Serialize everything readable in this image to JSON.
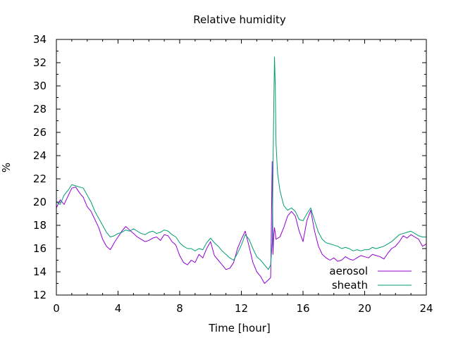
{
  "chart_data": {
    "type": "line",
    "title": "Relative humidity",
    "xlabel": "Time [hour]",
    "ylabel": "%",
    "xlim": [
      0,
      24
    ],
    "ylim": [
      12,
      34
    ],
    "xticks": [
      0,
      4,
      8,
      12,
      16,
      20,
      24
    ],
    "yticks": [
      12,
      14,
      16,
      18,
      20,
      22,
      24,
      26,
      28,
      30,
      32,
      34
    ],
    "grid": false,
    "legend_position": "bottom-right",
    "series": [
      {
        "name": "aerosol",
        "color": "#9400d3",
        "x": [
          0.0,
          0.25,
          0.5,
          0.75,
          1.0,
          1.25,
          1.5,
          1.75,
          2.0,
          2.25,
          2.5,
          2.75,
          3.0,
          3.25,
          3.5,
          3.75,
          4.0,
          4.25,
          4.5,
          4.75,
          5.0,
          5.25,
          5.5,
          5.75,
          6.0,
          6.25,
          6.5,
          6.75,
          7.0,
          7.25,
          7.5,
          7.75,
          8.0,
          8.25,
          8.5,
          8.75,
          9.0,
          9.25,
          9.5,
          9.75,
          10.0,
          10.25,
          10.5,
          10.75,
          11.0,
          11.25,
          11.5,
          11.75,
          12.0,
          12.25,
          12.5,
          12.75,
          13.0,
          13.25,
          13.5,
          13.75,
          13.9,
          13.95,
          14.0,
          14.05,
          14.1,
          14.15,
          14.25,
          14.5,
          14.75,
          15.0,
          15.25,
          15.5,
          15.75,
          16.0,
          16.25,
          16.5,
          16.75,
          17.0,
          17.25,
          17.5,
          17.75,
          18.0,
          18.25,
          18.5,
          18.75,
          19.0,
          19.25,
          19.5,
          19.75,
          20.0,
          20.25,
          20.5,
          20.75,
          21.0,
          21.25,
          21.5,
          21.75,
          22.0,
          22.25,
          22.5,
          22.75,
          23.0,
          23.25,
          23.5,
          23.75,
          24.0
        ],
        "y": [
          19.5,
          20.2,
          19.8,
          20.5,
          21.2,
          21.3,
          20.8,
          20.4,
          19.6,
          19.2,
          18.5,
          17.8,
          16.8,
          16.2,
          15.9,
          16.5,
          17.0,
          17.5,
          17.9,
          17.6,
          17.3,
          17.0,
          16.8,
          16.6,
          16.7,
          16.9,
          17.0,
          16.7,
          17.2,
          17.1,
          16.6,
          16.3,
          15.4,
          14.8,
          14.6,
          15.0,
          14.8,
          15.5,
          15.2,
          16.0,
          16.6,
          15.4,
          15.0,
          14.6,
          14.2,
          14.3,
          14.8,
          16.0,
          16.8,
          17.5,
          16.2,
          14.8,
          14.0,
          13.6,
          13.0,
          13.3,
          13.5,
          18.2,
          23.5,
          15.5,
          17.2,
          17.8,
          16.8,
          17.0,
          17.8,
          18.8,
          19.2,
          18.8,
          17.5,
          16.6,
          18.4,
          19.3,
          17.5,
          16.2,
          15.5,
          15.2,
          15.0,
          15.2,
          14.9,
          15.0,
          15.3,
          15.1,
          15.0,
          15.2,
          15.4,
          15.3,
          15.2,
          15.5,
          15.4,
          15.3,
          15.1,
          15.6,
          16.0,
          16.2,
          16.6,
          17.1,
          16.9,
          17.2,
          17.0,
          16.8,
          16.2,
          16.4
        ]
      },
      {
        "name": "sheath",
        "color": "#009e73",
        "x": [
          0.0,
          0.25,
          0.5,
          0.75,
          1.0,
          1.25,
          1.5,
          1.75,
          2.0,
          2.25,
          2.5,
          2.75,
          3.0,
          3.25,
          3.5,
          3.75,
          4.0,
          4.25,
          4.5,
          4.75,
          5.0,
          5.25,
          5.5,
          5.75,
          6.0,
          6.25,
          6.5,
          6.75,
          7.0,
          7.25,
          7.5,
          7.75,
          8.0,
          8.25,
          8.5,
          8.75,
          9.0,
          9.25,
          9.5,
          9.75,
          10.0,
          10.25,
          10.5,
          10.75,
          11.0,
          11.25,
          11.5,
          11.75,
          12.0,
          12.25,
          12.5,
          12.75,
          13.0,
          13.25,
          13.5,
          13.75,
          13.9,
          14.0,
          14.1,
          14.15,
          14.2,
          14.25,
          14.35,
          14.5,
          14.75,
          15.0,
          15.25,
          15.5,
          15.75,
          16.0,
          16.25,
          16.5,
          16.75,
          17.0,
          17.25,
          17.5,
          17.75,
          18.0,
          18.25,
          18.5,
          18.75,
          19.0,
          19.25,
          19.5,
          19.75,
          20.0,
          20.25,
          20.5,
          20.75,
          21.0,
          21.25,
          21.5,
          21.75,
          22.0,
          22.25,
          22.5,
          22.75,
          23.0,
          23.25,
          23.5,
          23.75,
          24.0
        ],
        "y": [
          20.0,
          19.8,
          20.6,
          21.0,
          21.5,
          21.4,
          21.3,
          21.2,
          20.6,
          20.0,
          19.2,
          18.6,
          18.0,
          17.4,
          17.0,
          17.1,
          17.3,
          17.4,
          17.6,
          17.5,
          17.7,
          17.5,
          17.3,
          17.2,
          17.4,
          17.5,
          17.3,
          17.4,
          17.6,
          17.5,
          17.2,
          17.0,
          16.5,
          16.2,
          16.0,
          16.0,
          15.8,
          16.0,
          15.9,
          16.5,
          16.9,
          16.5,
          16.2,
          15.8,
          15.5,
          15.2,
          15.0,
          15.6,
          16.3,
          17.2,
          16.8,
          16.0,
          15.3,
          15.0,
          14.6,
          14.2,
          14.6,
          16.5,
          28.0,
          32.5,
          30.0,
          25.0,
          22.5,
          21.0,
          19.7,
          19.3,
          19.5,
          19.2,
          18.5,
          18.4,
          19.0,
          19.5,
          18.4,
          17.4,
          16.8,
          16.5,
          16.4,
          16.3,
          16.2,
          16.0,
          16.1,
          16.0,
          15.8,
          15.9,
          15.8,
          15.9,
          15.9,
          16.1,
          16.0,
          16.1,
          16.2,
          16.4,
          16.6,
          16.9,
          17.2,
          17.3,
          17.4,
          17.5,
          17.3,
          17.1,
          17.0,
          17.0
        ]
      }
    ]
  }
}
